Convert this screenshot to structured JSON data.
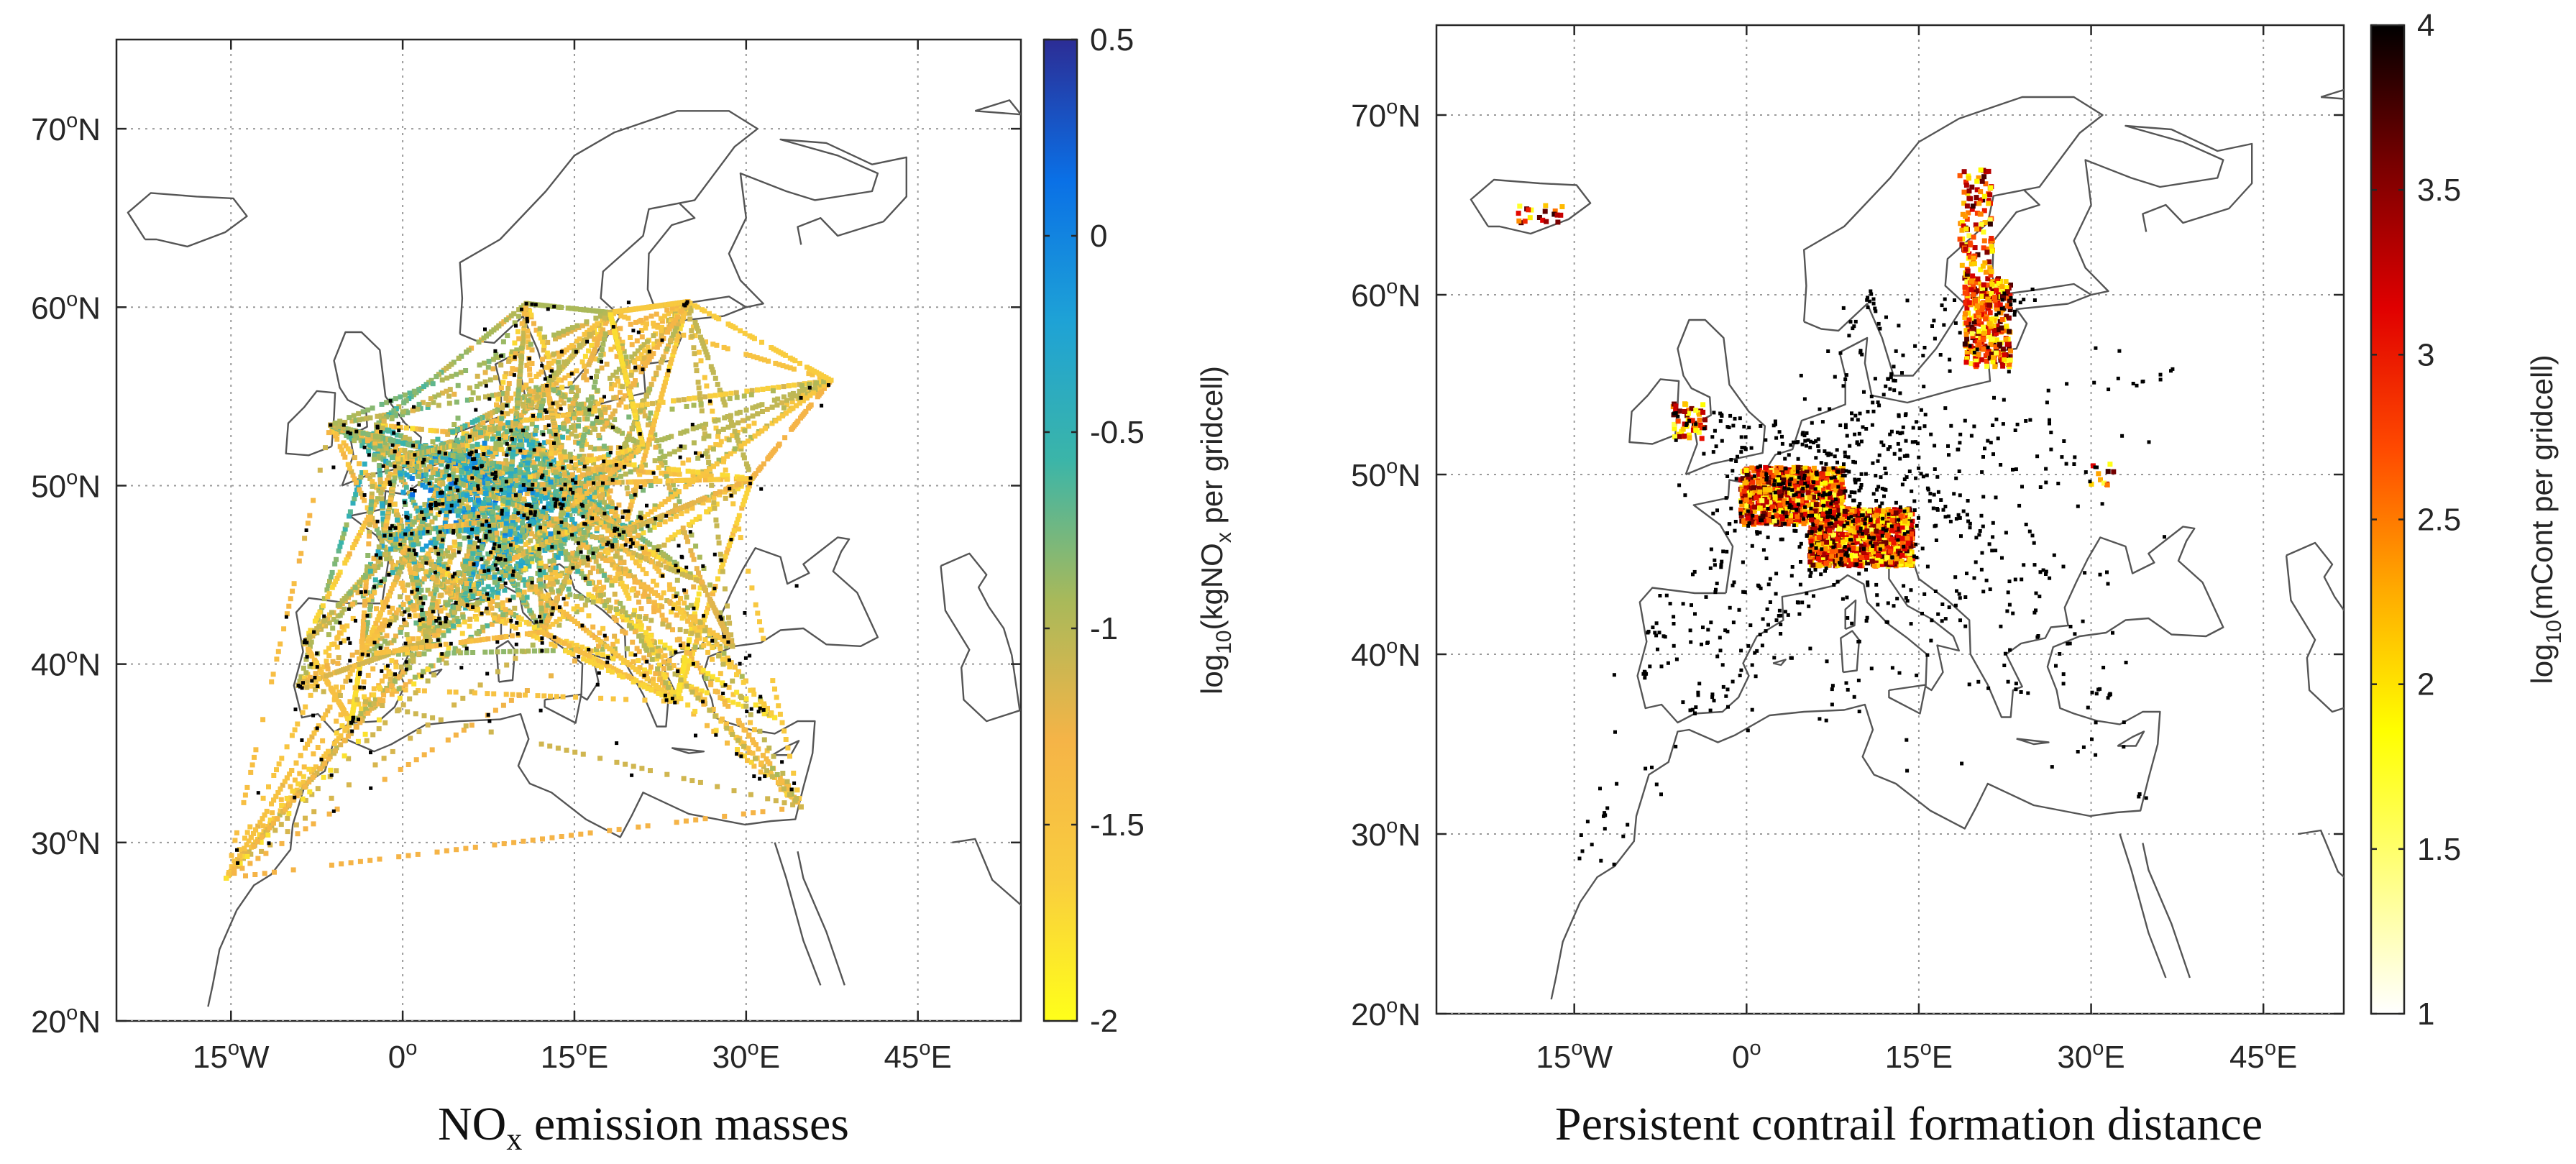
{
  "panels": [
    {
      "id": "nox",
      "caption_main": "NO",
      "caption_sub": "x",
      "caption_rest": " emission masses",
      "lat_ticks": [
        {
          "v": 20,
          "deg": "20",
          "hem": "N"
        },
        {
          "v": 30,
          "deg": "30",
          "hem": "N"
        },
        {
          "v": 40,
          "deg": "40",
          "hem": "N"
        },
        {
          "v": 50,
          "deg": "50",
          "hem": "N"
        },
        {
          "v": 60,
          "deg": "60",
          "hem": "N"
        },
        {
          "v": 70,
          "deg": "70",
          "hem": "N"
        }
      ],
      "lon_ticks": [
        {
          "v": -15,
          "deg": "15",
          "hem": "W"
        },
        {
          "v": 0,
          "deg": "0",
          "hem": ""
        },
        {
          "v": 15,
          "deg": "15",
          "hem": "E"
        },
        {
          "v": 30,
          "deg": "30",
          "hem": "E"
        },
        {
          "v": 45,
          "deg": "45",
          "hem": "E"
        }
      ],
      "colorbar": {
        "label_prefix": "log",
        "label_sub": "10",
        "label_mid": "(kgNO",
        "label_sub2": "x",
        "label_suffix": " per gridcell)",
        "ticks": [
          "0.5",
          "0",
          "-0.5",
          "-1",
          "-1.5",
          "-2"
        ],
        "range": [
          -2,
          0.5
        ],
        "colormap": [
          "#ffff1a",
          "#f9cd3e",
          "#f5b447",
          "#a8b95a",
          "#3bb5a8",
          "#1ea2d6",
          "#0a70e6",
          "#2c2d95"
        ]
      }
    },
    {
      "id": "contrail",
      "caption_main": "Persistent contrail formation distance",
      "caption_sub": "",
      "caption_rest": "",
      "lat_ticks": [
        {
          "v": 20,
          "deg": "20",
          "hem": "N"
        },
        {
          "v": 30,
          "deg": "30",
          "hem": "N"
        },
        {
          "v": 40,
          "deg": "40",
          "hem": "N"
        },
        {
          "v": 50,
          "deg": "50",
          "hem": "N"
        },
        {
          "v": 60,
          "deg": "60",
          "hem": "N"
        },
        {
          "v": 70,
          "deg": "70",
          "hem": "N"
        }
      ],
      "lon_ticks": [
        {
          "v": -15,
          "deg": "15",
          "hem": "W"
        },
        {
          "v": 0,
          "deg": "0",
          "hem": ""
        },
        {
          "v": 15,
          "deg": "15",
          "hem": "E"
        },
        {
          "v": 30,
          "deg": "30",
          "hem": "E"
        },
        {
          "v": 45,
          "deg": "45",
          "hem": "E"
        }
      ],
      "colorbar": {
        "label_prefix": "log",
        "label_sub": "10",
        "label_mid": "(mCont per gridcell)",
        "label_sub2": "",
        "label_suffix": "",
        "ticks": [
          "4",
          "3.5",
          "3",
          "2.5",
          "2",
          "1.5",
          "1"
        ],
        "range": [
          1,
          4
        ],
        "colormap": [
          "#ffffff",
          "#ffff80",
          "#ffff00",
          "#ffaa00",
          "#ff4a00",
          "#e00000",
          "#7a0000",
          "#000000"
        ]
      }
    }
  ],
  "style": {
    "coast_color": "#555555",
    "grid_color": "#9a9a9a",
    "dot_color": "#000000"
  }
}
